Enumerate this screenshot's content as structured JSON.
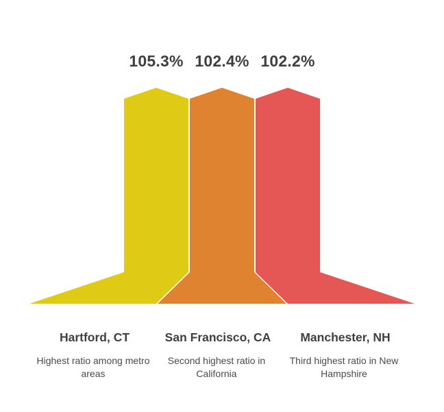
{
  "colors": {
    "yellow": "#dfcb16",
    "orange": "#df8331",
    "red": "#e45754",
    "text_dark": "#3f3f3f",
    "text_body": "#4a4a4a"
  },
  "items": [
    {
      "value": "105.3%",
      "title": "Hartford, CT",
      "description": "Highest ratio among metro areas",
      "color": "#dfcb16"
    },
    {
      "value": "102.4%",
      "title": "San Francisco, CA",
      "description": "Second highest ratio in California",
      "color": "#df8331"
    },
    {
      "value": "102.2%",
      "title": "Manchester, NH",
      "description": "Third highest ratio in New Hampshire",
      "color": "#e45754"
    }
  ]
}
